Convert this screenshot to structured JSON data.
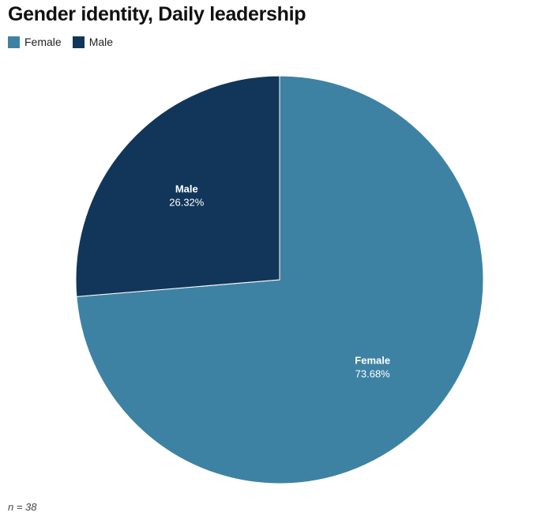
{
  "chart_data": {
    "type": "pie",
    "title": "Gender identity, Daily leadership",
    "series": [
      {
        "name": "Female",
        "value": 73.68,
        "label": "73.68%",
        "color": "#3e82a3"
      },
      {
        "name": "Male",
        "value": 26.32,
        "label": "26.32%",
        "color": "#12365a"
      }
    ],
    "legend_position": "top-left",
    "start_angle_deg": 0,
    "direction": "clockwise"
  },
  "footnote": "n = 38"
}
